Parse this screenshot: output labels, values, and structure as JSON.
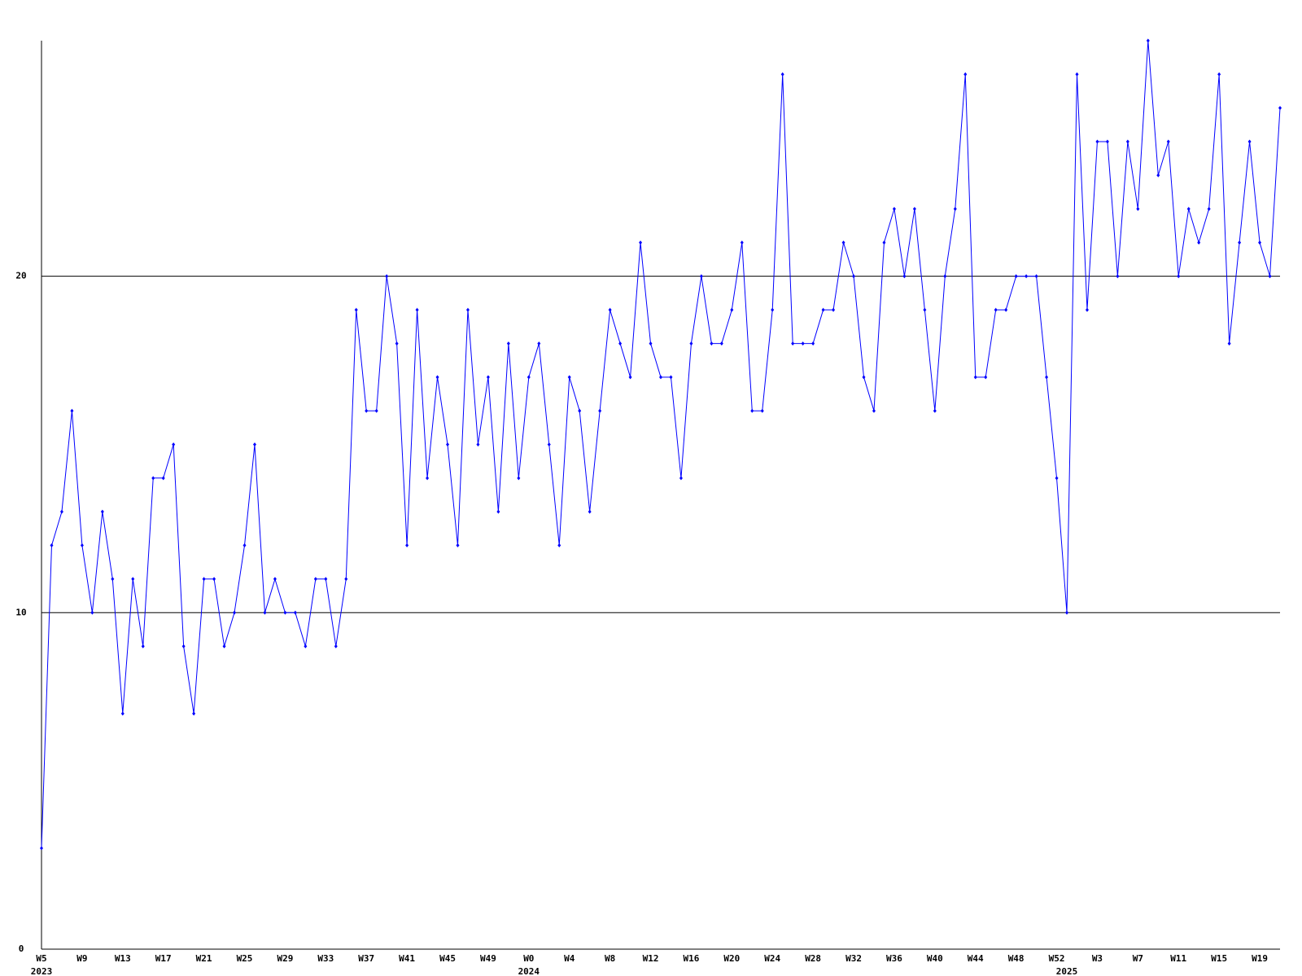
{
  "chart_data": {
    "type": "line",
    "color": "#0000ff",
    "ylim": [
      0,
      27
    ],
    "yticks": [
      0,
      10,
      20
    ],
    "grid": true,
    "categories": [
      "W5",
      null,
      null,
      null,
      "W9",
      null,
      null,
      null,
      "W13",
      null,
      null,
      null,
      "W17",
      null,
      null,
      null,
      "W21",
      null,
      null,
      null,
      "W25",
      null,
      null,
      null,
      "W29",
      null,
      null,
      null,
      "W33",
      null,
      null,
      null,
      "W37",
      null,
      null,
      null,
      "W41",
      null,
      null,
      null,
      "W45",
      null,
      null,
      null,
      "W49",
      null,
      null,
      null,
      "W0",
      null,
      null,
      null,
      "W4",
      null,
      null,
      null,
      "W8",
      null,
      null,
      null,
      "W12",
      null,
      null,
      null,
      "W16",
      null,
      null,
      null,
      "W20",
      null,
      null,
      null,
      "W24",
      null,
      null,
      null,
      "W28",
      null,
      null,
      null,
      "W32",
      null,
      null,
      null,
      "W36",
      null,
      null,
      null,
      "W40",
      null,
      null,
      null,
      "W44",
      null,
      null,
      null,
      "W48",
      null,
      null,
      null,
      "W52",
      null,
      null,
      null,
      "W3",
      null,
      null,
      null,
      "W7",
      null,
      null,
      null,
      "W11",
      null,
      null,
      null,
      "W15",
      null,
      null,
      null,
      "W19",
      null,
      null
    ],
    "category_years": [
      "2023",
      null,
      null,
      null,
      null,
      null,
      null,
      null,
      null,
      null,
      null,
      null,
      null,
      null,
      null,
      null,
      null,
      null,
      null,
      null,
      null,
      null,
      null,
      null,
      null,
      null,
      null,
      null,
      null,
      null,
      null,
      null,
      null,
      null,
      null,
      null,
      null,
      null,
      null,
      null,
      null,
      null,
      null,
      null,
      null,
      null,
      null,
      null,
      "2024",
      null,
      null,
      null,
      null,
      null,
      null,
      null,
      null,
      null,
      null,
      null,
      null,
      null,
      null,
      null,
      null,
      null,
      null,
      null,
      null,
      null,
      null,
      null,
      null,
      null,
      null,
      null,
      null,
      null,
      null,
      null,
      null,
      null,
      null,
      null,
      null,
      null,
      null,
      null,
      null,
      null,
      null,
      null,
      null,
      null,
      null,
      null,
      null,
      null,
      null,
      null,
      null,
      "2025",
      null,
      null,
      null,
      null,
      null,
      null,
      null,
      null,
      null,
      null,
      null,
      null,
      null,
      null,
      null,
      null,
      null,
      null,
      null,
      null,
      null
    ],
    "values": [
      3,
      12,
      13,
      16,
      12,
      10,
      13,
      11,
      7,
      11,
      9,
      14,
      14,
      15,
      9,
      7,
      11,
      11,
      9,
      10,
      12,
      15,
      10,
      11,
      10,
      10,
      9,
      11,
      11,
      9,
      11,
      19,
      16,
      16,
      20,
      18,
      12,
      19,
      14,
      17,
      15,
      12,
      19,
      15,
      17,
      13,
      18,
      14,
      17,
      18,
      15,
      12,
      17,
      16,
      13,
      16,
      19,
      18,
      17,
      21,
      18,
      17,
      17,
      14,
      18,
      20,
      18,
      18,
      19,
      21,
      16,
      16,
      19,
      26,
      18,
      18,
      18,
      19,
      19,
      21,
      20,
      17,
      16,
      21,
      22,
      20,
      22,
      19,
      16,
      20,
      22,
      26,
      17,
      17,
      19,
      19,
      20,
      20,
      20,
      17,
      14,
      10,
      26,
      19,
      24,
      24,
      20,
      24,
      22,
      27,
      23,
      24,
      20,
      22,
      21,
      22,
      26,
      18,
      21,
      24,
      21,
      20,
      25
    ]
  }
}
